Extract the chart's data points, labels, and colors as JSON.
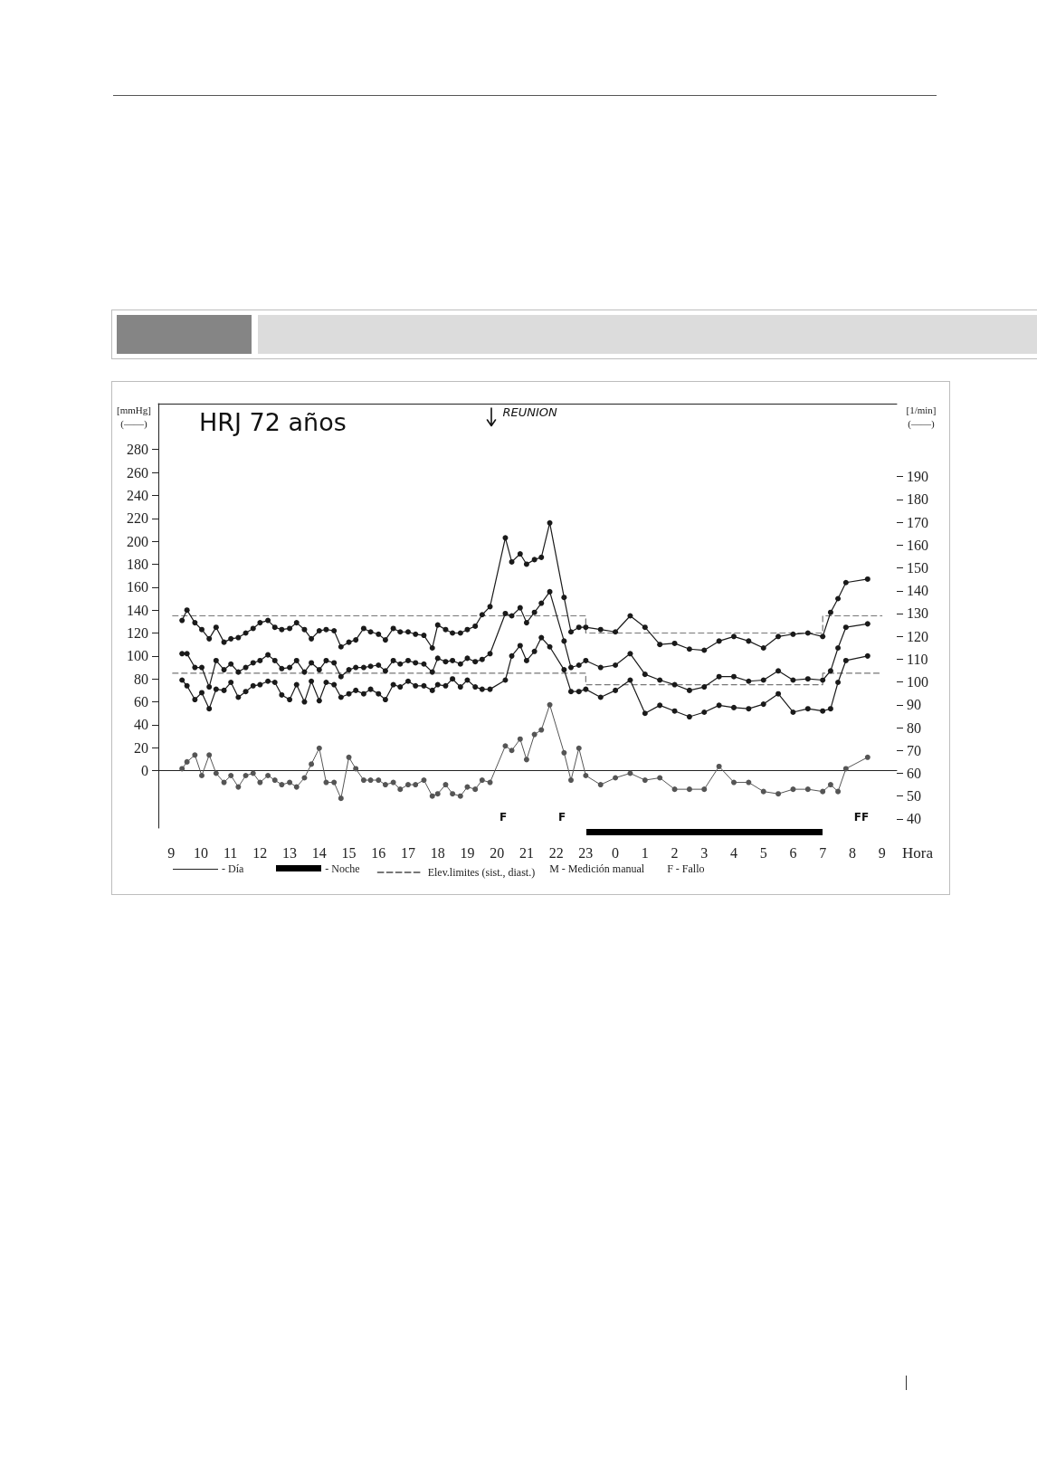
{
  "chart_data": {
    "type": "line",
    "title": "HRJ 72 años",
    "xlabel": "Hora",
    "ylabel": "[mmHg]\n(——)",
    "y2label": "[1/min]\n(——)",
    "x": [
      "--01-01T09:22",
      "--01-01T09:32",
      "--01-01T09:48",
      "--01-01T10:02",
      "--01-01T10:17",
      "--01-01T10:31",
      "--01-01T10:47",
      "--01-01T11:01",
      "--01-01T11:16",
      "--01-01T11:31",
      "--01-01T11:46",
      "--01-01T12:00",
      "--01-01T12:16",
      "--01-01T12:30",
      "--01-01T12:44",
      "--01-01T13:00",
      "--01-01T13:14",
      "--01-01T13:30",
      "--01-01T13:44",
      "--01-01T14:00",
      "--01-01T14:14",
      "--01-01T14:30",
      "--01-01T14:44",
      "--01-01T15:00",
      "--01-01T15:14",
      "--01-01T15:30",
      "--01-01T15:44",
      "--01-01T16:00",
      "--01-01T16:14",
      "--01-01T16:30",
      "--01-01T16:44",
      "--01-01T17:00",
      "--01-01T17:15",
      "--01-01T17:32",
      "--01-01T17:49",
      "--01-01T18:00",
      "--01-01T18:16",
      "--01-01T18:30",
      "--01-01T18:46",
      "--01-01T19:00",
      "--01-01T19:16",
      "--01-01T19:30",
      "--01-01T19:46",
      "--01-01T20:17",
      "--01-01T20:30",
      "--01-01T20:47",
      "--01-01T21:00",
      "--01-01T21:16",
      "--01-01T21:30",
      "--01-01T21:47",
      "--01-01T22:16",
      "--01-01T22:30",
      "--01-01T22:46",
      "--01-01T23:00",
      "--01-01T23:30",
      "--01-02T00:00",
      "--01-02T00:30",
      "--01-02T01:00",
      "--01-02T01:30",
      "--01-02T02:00",
      "--01-02T02:30",
      "--01-02T03:00",
      "--01-02T03:30",
      "--01-02T04:00",
      "--01-02T04:30",
      "--01-02T05:00",
      "--01-02T05:30",
      "--01-02T06:00",
      "--01-02T06:30",
      "--01-02T07:00",
      "--01-02T07:16",
      "--01-02T07:31",
      "--01-02T07:47",
      "--01-02T08:31"
    ],
    "xlim": [
      "--01-01T08:34",
      "--01-02T09:30"
    ],
    "xticks": [
      {
        "value": "--01-01T09:00",
        "label": "9"
      },
      {
        "value": "--01-01T10:00",
        "label": "10"
      },
      {
        "value": "--01-01T11:00",
        "label": "11"
      },
      {
        "value": "--01-01T12:00",
        "label": "12"
      },
      {
        "value": "--01-01T13:00",
        "label": "13"
      },
      {
        "value": "--01-01T14:00",
        "label": "14"
      },
      {
        "value": "--01-01T15:00",
        "label": "15"
      },
      {
        "value": "--01-01T16:00",
        "label": "16"
      },
      {
        "value": "--01-01T17:00",
        "label": "17"
      },
      {
        "value": "--01-01T18:00",
        "label": "18"
      },
      {
        "value": "--01-01T19:00",
        "label": "19"
      },
      {
        "value": "--01-01T20:00",
        "label": "20"
      },
      {
        "value": "--01-01T21:00",
        "label": "21"
      },
      {
        "value": "--01-01T22:00",
        "label": "22"
      },
      {
        "value": "--01-01T23:00",
        "label": "23"
      },
      {
        "value": "--01-02T00:00",
        "label": "0"
      },
      {
        "value": "--01-02T01:00",
        "label": "1"
      },
      {
        "value": "--01-02T02:00",
        "label": "2"
      },
      {
        "value": "--01-02T03:00",
        "label": "3"
      },
      {
        "value": "--01-02T04:00",
        "label": "4"
      },
      {
        "value": "--01-02T05:00",
        "label": "5"
      },
      {
        "value": "--01-02T06:00",
        "label": "6"
      },
      {
        "value": "--01-02T07:00",
        "label": "7"
      },
      {
        "value": "--01-02T08:00",
        "label": "8"
      },
      {
        "value": "--01-02T09:00",
        "label": "9"
      }
    ],
    "ylim": [
      -50,
      320
    ],
    "yticks": [
      0,
      20,
      40,
      60,
      80,
      100,
      120,
      140,
      160,
      180,
      200,
      220,
      240,
      260,
      280
    ],
    "y2lim": [
      36,
      222
    ],
    "y2ticks": [
      40,
      50,
      60,
      70,
      80,
      90,
      100,
      110,
      120,
      130,
      140,
      150,
      160,
      170,
      180,
      190
    ],
    "marker": "circle",
    "line_style": "solid",
    "legend": "bottom",
    "series": [
      {
        "color": "#1a1a1a",
        "values": [
          131,
          140,
          129,
          123,
          115,
          125,
          112,
          115,
          116,
          120,
          124,
          129,
          131,
          125,
          123,
          124,
          129,
          123,
          115,
          122,
          123,
          122,
          108,
          112,
          114,
          124,
          121,
          119,
          114,
          124,
          121,
          121,
          119,
          118,
          107,
          127,
          123,
          120,
          120,
          123,
          126,
          136,
          143,
          203,
          182,
          189,
          180,
          184,
          186,
          216,
          151,
          121,
          125,
          125,
          123,
          121,
          135,
          125,
          110,
          111,
          106,
          105,
          113,
          117,
          113,
          107,
          117,
          119,
          120,
          117,
          138,
          150,
          164,
          167
        ]
      },
      {
        "color": "#1a1a1a",
        "values": [
          102,
          102,
          90,
          90,
          73,
          96,
          88,
          93,
          86,
          90,
          94,
          96,
          101,
          96,
          89,
          90,
          96,
          86,
          94,
          88,
          96,
          94,
          82,
          88,
          90,
          90,
          91,
          92,
          87,
          96,
          93,
          96,
          94,
          93,
          86,
          98,
          95,
          96,
          93,
          98,
          95,
          97,
          102,
          137,
          135,
          142,
          129,
          138,
          146,
          156,
          113,
          90,
          92,
          96,
          90,
          92,
          102,
          84,
          79,
          75,
          70,
          73,
          82,
          82,
          78,
          79,
          87,
          79,
          80,
          79,
          87,
          107,
          125,
          128
        ]
      },
      {
        "color": "#1a1a1a",
        "values": [
          79,
          74,
          62,
          68,
          54,
          71,
          70,
          77,
          64,
          69,
          74,
          75,
          78,
          77,
          66,
          62,
          75,
          60,
          78,
          61,
          77,
          75,
          64,
          67,
          70,
          67,
          71,
          67,
          62,
          75,
          73,
          78,
          74,
          74,
          70,
          75,
          74,
          80,
          73,
          79,
          73,
          71,
          71,
          79,
          100,
          109,
          96,
          104,
          116,
          108,
          88,
          69,
          69,
          71,
          64,
          70,
          79,
          50,
          57,
          52,
          47,
          51,
          57,
          55,
          54,
          58,
          67,
          51,
          54,
          52,
          54,
          77,
          96,
          100
        ]
      },
      {
        "color": "#555555",
        "axis": "y2",
        "values": [
          62,
          65,
          68,
          59,
          68,
          60,
          56,
          59,
          54,
          59,
          60,
          56,
          59,
          57,
          55,
          56,
          54,
          58,
          64,
          71,
          56,
          56,
          49,
          67,
          62,
          57,
          57,
          57,
          55,
          56,
          53,
          55,
          55,
          57,
          50,
          51,
          55,
          51,
          50,
          54,
          53,
          57,
          56,
          72,
          70,
          75,
          66,
          77,
          79,
          90,
          69,
          57,
          71,
          59,
          55,
          58,
          60,
          57,
          58,
          53,
          53,
          53,
          63,
          56,
          56,
          52,
          51,
          53,
          53,
          52,
          55,
          52,
          62,
          67
        ]
      },
      {
        "name": "Elev.limites (sist., diast.)",
        "type": "step",
        "color": "#777777",
        "line_style": "dashed",
        "marker": "none",
        "x": [
          "--01-01T09:03",
          "--01-01T23:00",
          "--01-02T07:00",
          "--01-02T09:00"
        ],
        "values": [
          135,
          120,
          135,
          135
        ]
      },
      {
        "type": "step",
        "color": "#777777",
        "line_style": "dashed",
        "marker": "none",
        "x": [
          "--01-01T09:03",
          "--01-01T23:00",
          "--01-02T07:00",
          "--01-02T09:00"
        ],
        "values": [
          85,
          75,
          85,
          85
        ]
      }
    ],
    "annotations": [
      "REUNION",
      "F",
      "F",
      "FF",
      "- Día",
      "- Noche",
      "M - Medición manual",
      "F - Fallo"
    ]
  }
}
